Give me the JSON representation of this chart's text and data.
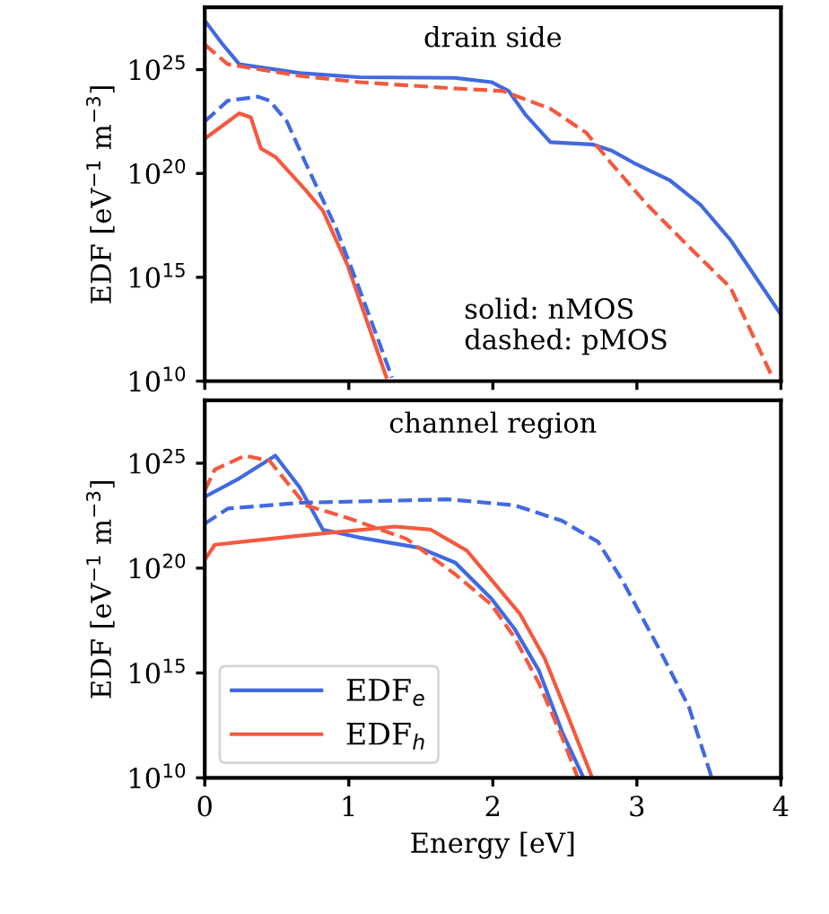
{
  "chart_data": [
    {
      "type": "line",
      "annotations": [
        "drain side",
        "solid: nMOS\ndashed: pMOS"
      ],
      "ylabel": "EDF [eV$^{−1}$ m$^{−3}$]",
      "log": "y",
      "xlim": [
        0,
        4
      ],
      "xticks": [
        0,
        1,
        2,
        3,
        4
      ],
      "ylim": [
        10000000000.0,
        1e+28
      ],
      "yticks": [
        {
          "value": 10000000000.0,
          "label": "10$^{10}$"
        },
        {
          "value": 1000000000000000.0,
          "label": "10$^{15}$"
        },
        {
          "value": 1e+20,
          "label": "10$^{20}$"
        },
        {
          "value": 1e+25,
          "label": "10$^{25}$"
        }
      ],
      "tick_labels": "y",
      "grid": false,
      "legend": false,
      "series": [
        {
          "color": "#4169e1",
          "line_style": "solid",
          "x": [
            0,
            0.12,
            0.24,
            0.66,
            1.07,
            1.74,
            1.99,
            2.11,
            2.23,
            2.4,
            2.69,
            2.82,
            2.98,
            3.23,
            3.44,
            3.65,
            4.0
          ],
          "values": [
            2.3e+27,
            1.8e+26,
            1.8e+25,
            6.8e+24,
            4.3e+24,
            4e+24,
            2.5e+24,
            9.3e+23,
            6.3e+22,
            3.2e+21,
            2.5e+21,
            1.3e+21,
            3.2e+20,
            4.6e+19,
            3.2e+18,
            6.3e+16,
            16000000000000.0
          ]
        },
        {
          "color": "#f4593f",
          "line_style": "solid",
          "x": [
            0,
            0.24,
            0.32,
            0.39,
            0.49,
            0.7,
            0.82,
            0.99,
            1.26
          ],
          "values": [
            4.7e+21,
            7.9e+22,
            5e+22,
            1.6e+21,
            6.3e+20,
            1.6e+19,
            1.6e+18,
            4000000000000000.0,
            16000000000.0
          ]
        },
        {
          "color": "#4169e1",
          "line_style": "dashed",
          "x": [
            0,
            0.16,
            0.37,
            0.45,
            0.57,
            0.7,
            0.91,
            1.07,
            1.3
          ],
          "values": [
            3.2e+22,
            3.2e+23,
            5e+23,
            3.2e+23,
            3.2e+22,
            3.2e+20,
            2.5e+17,
            320000000000000.0,
            15000000000.0
          ]
        },
        {
          "color": "#f4593f",
          "line_style": "dashed",
          "x": [
            0,
            0.16,
            0.66,
            1.07,
            1.69,
            2.07,
            2.4,
            2.65,
            2.82,
            3.07,
            3.4,
            3.65,
            3.94
          ],
          "values": [
            1.6e+26,
            1.8e+25,
            5e+24,
            2.5e+24,
            1.3e+24,
            9.3e+23,
            1.3e+23,
            8.9e+21,
            3.2e+20,
            3.2e+18,
            1.6e+16,
            320000000000000.0,
            16000000000.0
          ]
        }
      ]
    },
    {
      "type": "line",
      "annotations": [
        "channel region"
      ],
      "xlabel": "Energy [eV]",
      "ylabel": "EDF [eV$^{−1}$ m$^{−3}$]",
      "log": "y",
      "xlim": [
        0,
        4
      ],
      "xticks": [
        0,
        1,
        2,
        3,
        4
      ],
      "ylim": [
        10000000000.0,
        1e+28
      ],
      "yticks": [
        {
          "value": 10000000000.0,
          "label": "10$^{10}$"
        },
        {
          "value": 1000000000000000.0,
          "label": "10$^{15}$"
        },
        {
          "value": 1e+20,
          "label": "10$^{20}$"
        },
        {
          "value": 1e+25,
          "label": "10$^{25}$"
        }
      ],
      "grid": false,
      "legend": "bottom left",
      "series": [
        {
          "name": "EDF$_{e}$",
          "color": "#4169e1",
          "line_style": "solid",
          "x": [
            0,
            0.24,
            0.49,
            0.66,
            0.82,
            1.07,
            1.49,
            1.74,
            1.99,
            2.15,
            2.32,
            2.48,
            2.63
          ],
          "values": [
            2.5e+23,
            1.9e+24,
            2.3e+25,
            6.9e+23,
            6.8e+21,
            2.9e+21,
            9.3e+20,
            1.8e+20,
            3.5e+18,
            1.3e+17,
            1300000000000000.0,
            1600000000000.0,
            10000000000.0
          ]
        },
        {
          "name": "EDF$_{h}$",
          "color": "#f4593f",
          "line_style": "solid",
          "x": [
            0,
            0.07,
            0.66,
            1.32,
            1.57,
            1.82,
            2.03,
            2.19,
            2.36,
            2.53,
            2.69
          ],
          "values": [
            2.5e+20,
            1.3e+21,
            3.5e+21,
            9.5e+21,
            6.8e+21,
            6.8e+20,
            1.3e+19,
            6.3e+17,
            5000000000000000.0,
            6300000000000.0,
            10000000000.0
          ]
        },
        {
          "color": "#4169e1",
          "line_style": "dashed",
          "x": [
            0,
            0.16,
            0.66,
            1.69,
            2.15,
            2.48,
            2.73,
            2.9,
            3.15,
            3.36,
            3.52
          ],
          "values": [
            1.3e+22,
            6.9e+22,
            1.3e+23,
            1.9e+23,
            1e+23,
            1.8e+22,
            1.8e+21,
            2.5e+19,
            1.6e+16,
            25000000000000.0,
            10000000000.0
          ]
        },
        {
          "color": "#f4593f",
          "line_style": "dashed",
          "x": [
            0,
            0.07,
            0.28,
            0.45,
            0.7,
            0.99,
            1.4,
            1.74,
            1.99,
            2.15,
            2.32,
            2.48,
            2.59
          ],
          "values": [
            5e+23,
            5e+24,
            2.3e+25,
            1.3e+25,
            1e+23,
            2.5e+22,
            2.5e+21,
            5e+19,
            1.8e+18,
            5e+16,
            320000000000000.0,
            890000000000.0,
            10000000000.0
          ]
        }
      ]
    }
  ]
}
